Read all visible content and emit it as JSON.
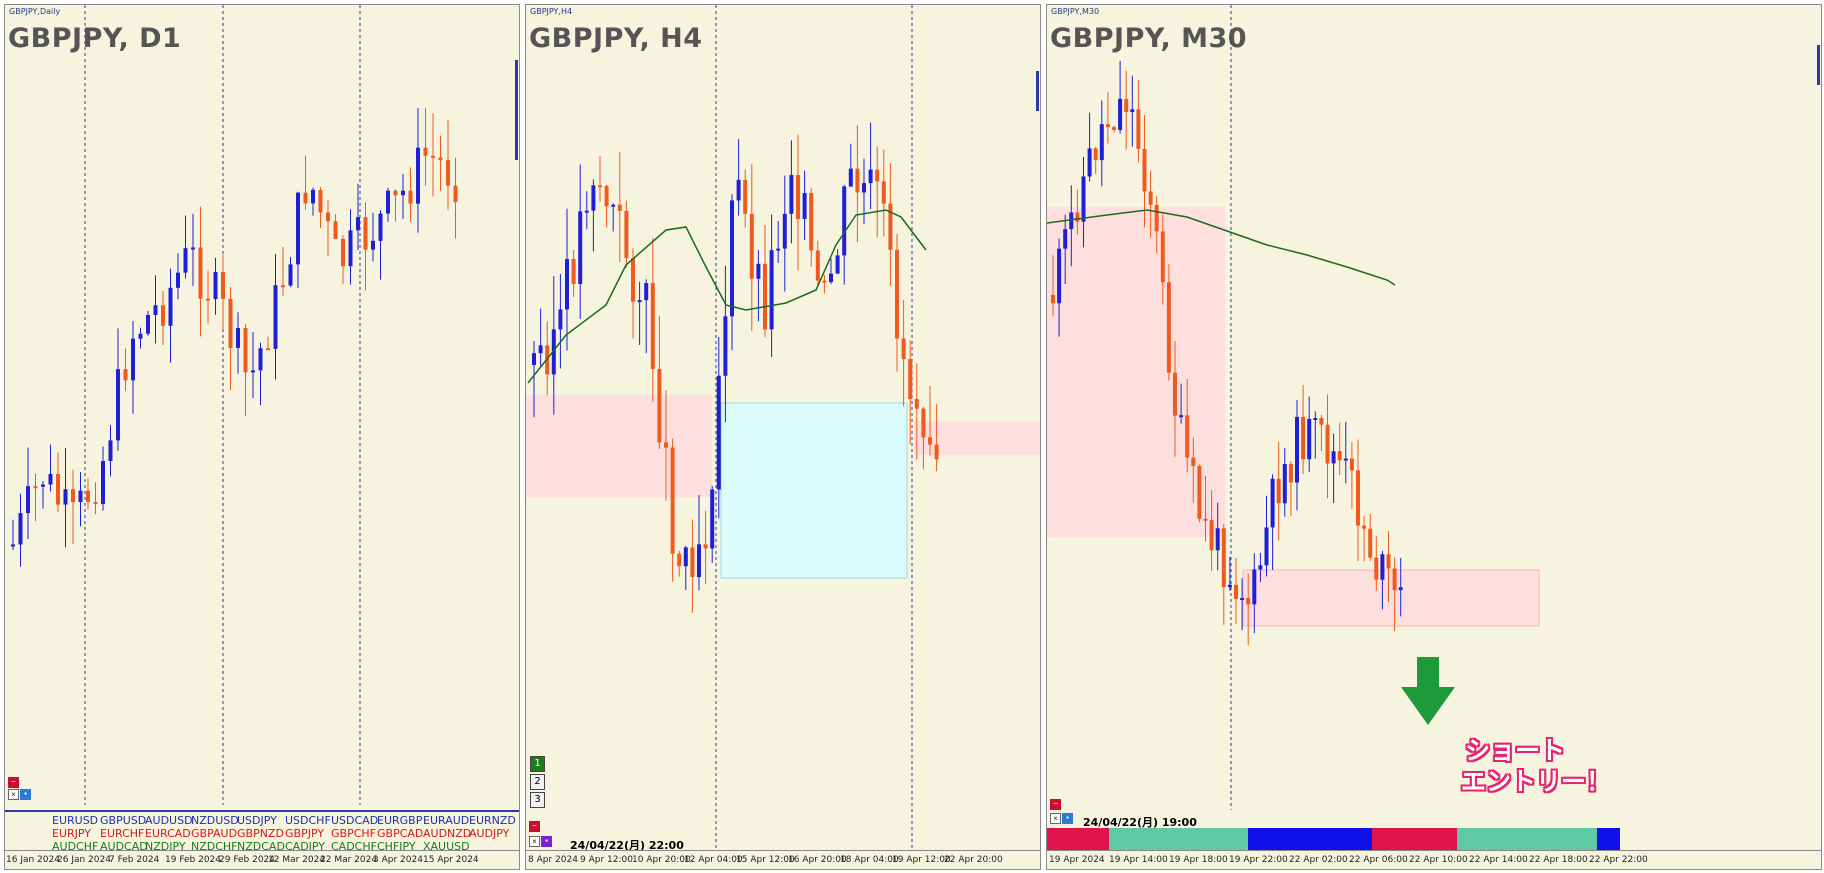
{
  "panels": [
    {
      "id": "d1",
      "caption": "GBPJPY,Daily",
      "title": "GBPJPY, D1",
      "x_labels": [
        "16 Jan 2024",
        "26 Jan 2024",
        "7 Feb 2024",
        "19 Feb 2024",
        "29 Feb 2024",
        "12 Mar 2024",
        "22 Mar 2024",
        "3 Apr 2024",
        "15 Apr 2024"
      ],
      "buttons": [
        "−",
        "×",
        "▪"
      ]
    },
    {
      "id": "h4",
      "caption": "GBPJPY,H4",
      "title": "GBPJPY, H4",
      "x_labels": [
        "8 Apr 2024",
        "9 Apr 12:00",
        "10 Apr 20:00",
        "12 Apr 04:00",
        "15 Apr 12:00",
        "16 Apr 20:00",
        "18 Apr 04:00",
        "19 Apr 12:00",
        "22 Apr 20:00"
      ],
      "timeframe_buttons": [
        "1",
        "2",
        "3"
      ],
      "timestamp": "24/04/22(月) 22:00",
      "buttons": [
        "−",
        "×",
        "▪"
      ]
    },
    {
      "id": "m30",
      "caption": "GBPJPY,M30",
      "title": "GBPJPY, M30",
      "x_labels": [
        "19 Apr 2024",
        "19 Apr 14:00",
        "19 Apr 18:00",
        "19 Apr 22:00",
        "22 Apr 02:00",
        "22 Apr 06:00",
        "22 Apr 10:00",
        "22 Apr 14:00",
        "22 Apr 18:00",
        "22 Apr 22:00"
      ],
      "timestamp": "24/04/22(月) 19:00",
      "buttons": [
        "−",
        "×",
        "▪"
      ]
    }
  ],
  "currency_pairs": [
    [
      {
        "t": "EURUSD",
        "c": "#1f2fb0"
      },
      {
        "t": "GBPUSD",
        "c": "#1f2fb0"
      },
      {
        "t": "AUDUSD",
        "c": "#1f2fb0"
      },
      {
        "t": "NZDUSD",
        "c": "#1f2fb0"
      },
      {
        "t": "USDJPY",
        "c": "#1f2fb0"
      },
      {
        "t": "USDCHF",
        "c": "#1f2fb0"
      },
      {
        "t": "USDCAD",
        "c": "#1f2fb0"
      },
      {
        "t": "EURGBP",
        "c": "#1f2fb0"
      },
      {
        "t": "EURAUD",
        "c": "#1f2fb0"
      },
      {
        "t": "EURNZD",
        "c": "#1f2fb0"
      }
    ],
    [
      {
        "t": "EURJPY",
        "c": "#d11a1a"
      },
      {
        "t": "EURCHF",
        "c": "#d11a1a"
      },
      {
        "t": "EURCAD",
        "c": "#d11a1a"
      },
      {
        "t": "GBPAUD",
        "c": "#d11a1a"
      },
      {
        "t": "GBPNZD",
        "c": "#d11a1a"
      },
      {
        "t": "GBPJPY",
        "c": "#d11a1a"
      },
      {
        "t": "GBPCHF",
        "c": "#d11a1a"
      },
      {
        "t": "GBPCAD",
        "c": "#d11a1a"
      },
      {
        "t": "AUDNZD",
        "c": "#d11a1a"
      },
      {
        "t": "AUDJPY",
        "c": "#d11a1a"
      }
    ],
    [
      {
        "t": "AUDCHF",
        "c": "#1a7a1a"
      },
      {
        "t": "AUDCAD",
        "c": "#1a7a1a"
      },
      {
        "t": "NZDJPY",
        "c": "#1a7a1a"
      },
      {
        "t": "NZDCHF",
        "c": "#1a7a1a"
      },
      {
        "t": "NZDCAD",
        "c": "#1a7a1a"
      },
      {
        "t": "CADJPY",
        "c": "#1a7a1a"
      },
      {
        "t": "CADCHF",
        "c": "#1a7a1a"
      },
      {
        "t": "CHFJPY",
        "c": "#1a7a1a"
      },
      {
        "t": "XAUUSD",
        "c": "#1a7a1a"
      }
    ]
  ],
  "annotation": {
    "line1": "ショート",
    "line2": "エントリー！",
    "arrow": "down-arrow-icon"
  },
  "colors": {
    "chart_bg": "#f6f4de",
    "bull": "#1f1fd6",
    "bear": "#f05a1e",
    "ma": "#1c6b1c",
    "zone_red": "#fde0dd",
    "zone_cyan": "#d9fbfb",
    "arrow": "#1e9a3a",
    "entry_text": "#e8236e"
  },
  "trend_segments": [
    {
      "c": "#e0144a",
      "w": 0.08
    },
    {
      "c": "#5fc9a6",
      "w": 0.18
    },
    {
      "c": "#1010e8",
      "w": 0.16
    },
    {
      "c": "#e0144a",
      "w": 0.11
    },
    {
      "c": "#5fc9a6",
      "w": 0.18
    },
    {
      "c": "#1010e8",
      "w": 0.03
    }
  ]
}
